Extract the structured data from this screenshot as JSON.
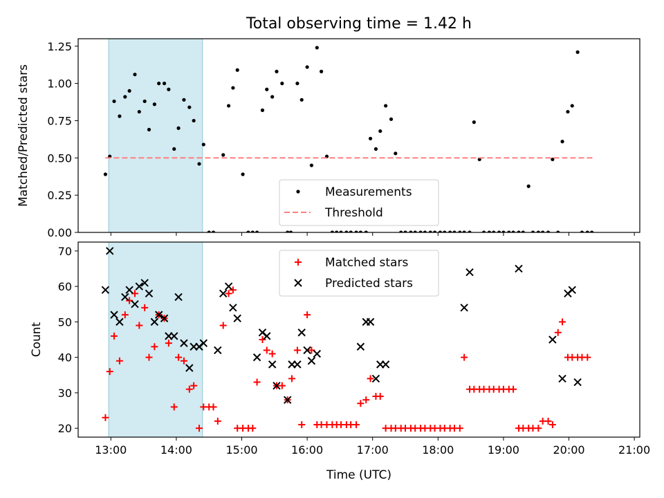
{
  "title": "Total observing time = 1.42 h",
  "chart_data": [
    {
      "type": "scatter",
      "ylabel": "Matched/Predicted stars",
      "ylim": [
        0,
        1.3
      ],
      "yticks": [
        "0.00",
        "0.25",
        "0.50",
        "0.75",
        "1.00",
        "1.25"
      ],
      "ytick_values": [
        0,
        0.25,
        0.5,
        0.75,
        1.0,
        1.25
      ],
      "xlim": [
        "12:30",
        "21:05"
      ],
      "shaded_span": [
        "12:58",
        "14:24"
      ],
      "shade_color": "#add8e6",
      "legend": {
        "position": "lower-center",
        "entries": [
          "Measurements",
          "Threshold"
        ]
      },
      "series": [
        {
          "name": "Measurements",
          "color": "#000000",
          "marker": "dot",
          "points": [
            [
              "12:55",
              0.39
            ],
            [
              "12:59",
              0.51
            ],
            [
              "13:03",
              0.88
            ],
            [
              "13:08",
              0.78
            ],
            [
              "13:13",
              0.91
            ],
            [
              "13:17",
              0.95
            ],
            [
              "13:22",
              1.06
            ],
            [
              "13:26",
              0.81
            ],
            [
              "13:31",
              0.88
            ],
            [
              "13:35",
              0.69
            ],
            [
              "13:40",
              0.86
            ],
            [
              "13:44",
              1.0
            ],
            [
              "13:49",
              1.0
            ],
            [
              "13:53",
              0.96
            ],
            [
              "13:58",
              0.56
            ],
            [
              "14:02",
              0.7
            ],
            [
              "14:07",
              0.89
            ],
            [
              "14:12",
              0.84
            ],
            [
              "14:16",
              0.75
            ],
            [
              "14:21",
              0.46
            ],
            [
              "14:25",
              0.59
            ],
            [
              "14:30",
              0.0
            ],
            [
              "14:34",
              0.0
            ],
            [
              "14:43",
              0.52
            ],
            [
              "14:48",
              0.85
            ],
            [
              "14:52",
              0.97
            ],
            [
              "14:56",
              1.09
            ],
            [
              "15:01",
              0.39
            ],
            [
              "15:06",
              0.0
            ],
            [
              "15:10",
              0.0
            ],
            [
              "15:14",
              0.0
            ],
            [
              "15:19",
              0.82
            ],
            [
              "15:23",
              0.96
            ],
            [
              "15:28",
              0.91
            ],
            [
              "15:32",
              1.08
            ],
            [
              "15:37",
              1.0
            ],
            [
              "15:42",
              0.0
            ],
            [
              "15:45",
              0.0
            ],
            [
              "15:51",
              1.0
            ],
            [
              "15:55",
              0.89
            ],
            [
              "16:00",
              1.11
            ],
            [
              "16:04",
              0.45
            ],
            [
              "16:09",
              1.24
            ],
            [
              "16:13",
              1.08
            ],
            [
              "16:18",
              0.51
            ],
            [
              "16:23",
              0.0
            ],
            [
              "16:27",
              0.0
            ],
            [
              "16:31",
              0.0
            ],
            [
              "16:36",
              0.0
            ],
            [
              "16:40",
              0.0
            ],
            [
              "16:45",
              0.0
            ],
            [
              "16:49",
              0.0
            ],
            [
              "16:54",
              0.0
            ],
            [
              "16:58",
              0.63
            ],
            [
              "17:03",
              0.56
            ],
            [
              "17:07",
              0.68
            ],
            [
              "17:12",
              0.85
            ],
            [
              "17:17",
              0.76
            ],
            [
              "17:21",
              0.53
            ],
            [
              "17:26",
              0.0
            ],
            [
              "17:30",
              0.0
            ],
            [
              "17:35",
              0.0
            ],
            [
              "17:39",
              0.0
            ],
            [
              "17:44",
              0.0
            ],
            [
              "17:48",
              0.0
            ],
            [
              "17:53",
              0.0
            ],
            [
              "17:57",
              0.0
            ],
            [
              "18:02",
              0.0
            ],
            [
              "18:06",
              0.0
            ],
            [
              "18:11",
              0.0
            ],
            [
              "18:15",
              0.0
            ],
            [
              "18:20",
              0.0
            ],
            [
              "18:24",
              0.0
            ],
            [
              "18:29",
              0.0
            ],
            [
              "18:33",
              0.74
            ],
            [
              "18:38",
              0.49
            ],
            [
              "18:42",
              0.0
            ],
            [
              "18:47",
              0.0
            ],
            [
              "18:51",
              0.0
            ],
            [
              "18:56",
              0.0
            ],
            [
              "19:00",
              0.0
            ],
            [
              "19:05",
              0.0
            ],
            [
              "19:09",
              0.0
            ],
            [
              "19:14",
              0.0
            ],
            [
              "19:18",
              0.0
            ],
            [
              "19:23",
              0.31
            ],
            [
              "19:27",
              0.0
            ],
            [
              "19:32",
              0.0
            ],
            [
              "19:36",
              0.0
            ],
            [
              "19:41",
              0.0
            ],
            [
              "19:45",
              0.49
            ],
            [
              "19:50",
              0.0
            ],
            [
              "19:54",
              0.61
            ],
            [
              "19:59",
              0.81
            ],
            [
              "20:03",
              0.85
            ],
            [
              "20:08",
              1.21
            ],
            [
              "20:12",
              0.0
            ],
            [
              "20:17",
              0.0
            ],
            [
              "20:21",
              0.0
            ]
          ]
        },
        {
          "name": "Threshold",
          "color": "#ff7f7f",
          "style": "dashed",
          "points": [
            [
              "12:55",
              0.5
            ],
            [
              "20:23",
              0.5
            ]
          ]
        }
      ]
    },
    {
      "type": "scatter",
      "xlabel": "Time (UTC)",
      "ylabel": "Count",
      "ylim": [
        17.5,
        72.5
      ],
      "yticks": [
        "20",
        "30",
        "40",
        "50",
        "60",
        "70"
      ],
      "ytick_values": [
        20,
        30,
        40,
        50,
        60,
        70
      ],
      "xlim": [
        "12:30",
        "21:05"
      ],
      "xticks": [
        "13:00",
        "14:00",
        "15:00",
        "16:00",
        "17:00",
        "18:00",
        "19:00",
        "20:00",
        "21:00"
      ],
      "shaded_span": [
        "12:58",
        "14:24"
      ],
      "shade_color": "#add8e6",
      "legend": {
        "position": "upper-center",
        "entries": [
          "Matched stars",
          "Predicted stars"
        ]
      },
      "series": [
        {
          "name": "Matched stars",
          "color": "#ff0000",
          "marker": "plus",
          "points": [
            [
              "12:55",
              23
            ],
            [
              "12:59",
              36
            ],
            [
              "13:03",
              46
            ],
            [
              "13:08",
              39
            ],
            [
              "13:13",
              52
            ],
            [
              "13:17",
              56
            ],
            [
              "13:22",
              58
            ],
            [
              "13:26",
              49
            ],
            [
              "13:31",
              54
            ],
            [
              "13:35",
              40
            ],
            [
              "13:40",
              43
            ],
            [
              "13:44",
              52
            ],
            [
              "13:49",
              51
            ],
            [
              "13:53",
              44
            ],
            [
              "13:58",
              26
            ],
            [
              "14:02",
              40
            ],
            [
              "14:07",
              39
            ],
            [
              "14:12",
              31
            ],
            [
              "14:16",
              32
            ],
            [
              "14:21",
              20
            ],
            [
              "14:25",
              26
            ],
            [
              "14:30",
              26
            ],
            [
              "14:34",
              26
            ],
            [
              "14:38",
              22
            ],
            [
              "14:43",
              49
            ],
            [
              "14:48",
              58
            ],
            [
              "14:52",
              59
            ],
            [
              "14:56",
              20
            ],
            [
              "15:01",
              20
            ],
            [
              "15:06",
              20
            ],
            [
              "15:10",
              20
            ],
            [
              "15:14",
              33
            ],
            [
              "15:19",
              45
            ],
            [
              "15:23",
              42
            ],
            [
              "15:28",
              41
            ],
            [
              "15:32",
              32
            ],
            [
              "15:37",
              32
            ],
            [
              "15:42",
              28
            ],
            [
              "15:46",
              34
            ],
            [
              "15:51",
              42
            ],
            [
              "15:55",
              21
            ],
            [
              "16:00",
              52
            ],
            [
              "16:04",
              42
            ],
            [
              "16:09",
              21
            ],
            [
              "16:13",
              21
            ],
            [
              "16:18",
              21
            ],
            [
              "16:23",
              21
            ],
            [
              "16:27",
              21
            ],
            [
              "16:31",
              21
            ],
            [
              "16:36",
              21
            ],
            [
              "16:40",
              21
            ],
            [
              "16:45",
              21
            ],
            [
              "16:49",
              27
            ],
            [
              "16:54",
              28
            ],
            [
              "16:58",
              34
            ],
            [
              "17:03",
              29
            ],
            [
              "17:07",
              29
            ],
            [
              "17:12",
              20
            ],
            [
              "17:17",
              20
            ],
            [
              "17:21",
              20
            ],
            [
              "17:26",
              20
            ],
            [
              "17:30",
              20
            ],
            [
              "17:35",
              20
            ],
            [
              "17:39",
              20
            ],
            [
              "17:44",
              20
            ],
            [
              "17:48",
              20
            ],
            [
              "17:53",
              20
            ],
            [
              "17:57",
              20
            ],
            [
              "18:02",
              20
            ],
            [
              "18:06",
              20
            ],
            [
              "18:11",
              20
            ],
            [
              "18:15",
              20
            ],
            [
              "18:20",
              20
            ],
            [
              "18:24",
              40
            ],
            [
              "18:29",
              31
            ],
            [
              "18:33",
              31
            ],
            [
              "18:38",
              31
            ],
            [
              "18:42",
              31
            ],
            [
              "18:47",
              31
            ],
            [
              "18:51",
              31
            ],
            [
              "18:56",
              31
            ],
            [
              "19:00",
              31
            ],
            [
              "19:05",
              31
            ],
            [
              "19:09",
              31
            ],
            [
              "19:14",
              20
            ],
            [
              "19:18",
              20
            ],
            [
              "19:23",
              20
            ],
            [
              "19:27",
              20
            ],
            [
              "19:32",
              20
            ],
            [
              "19:36",
              22
            ],
            [
              "19:41",
              22
            ],
            [
              "19:45",
              21
            ],
            [
              "19:50",
              47
            ],
            [
              "19:54",
              50
            ],
            [
              "19:59",
              40
            ],
            [
              "20:03",
              40
            ],
            [
              "20:08",
              40
            ],
            [
              "20:12",
              40
            ],
            [
              "20:17",
              40
            ]
          ]
        },
        {
          "name": "Predicted stars",
          "color": "#000000",
          "marker": "x",
          "points": [
            [
              "12:55",
              59
            ],
            [
              "12:59",
              70
            ],
            [
              "13:03",
              52
            ],
            [
              "13:08",
              50
            ],
            [
              "13:13",
              57
            ],
            [
              "13:17",
              59
            ],
            [
              "13:22",
              55
            ],
            [
              "13:26",
              60
            ],
            [
              "13:31",
              61
            ],
            [
              "13:35",
              58
            ],
            [
              "13:40",
              50
            ],
            [
              "13:44",
              52
            ],
            [
              "13:49",
              51
            ],
            [
              "13:53",
              46
            ],
            [
              "13:58",
              46
            ],
            [
              "14:02",
              57
            ],
            [
              "14:07",
              44
            ],
            [
              "14:12",
              37
            ],
            [
              "14:16",
              43
            ],
            [
              "14:21",
              43
            ],
            [
              "14:25",
              44
            ],
            [
              "14:38",
              42
            ],
            [
              "14:43",
              58
            ],
            [
              "14:48",
              60
            ],
            [
              "14:52",
              54
            ],
            [
              "14:56",
              51
            ],
            [
              "15:14",
              40
            ],
            [
              "15:19",
              47
            ],
            [
              "15:23",
              46
            ],
            [
              "15:28",
              38
            ],
            [
              "15:32",
              32
            ],
            [
              "15:42",
              28
            ],
            [
              "15:46",
              38
            ],
            [
              "15:51",
              38
            ],
            [
              "15:55",
              47
            ],
            [
              "16:00",
              42
            ],
            [
              "16:04",
              39
            ],
            [
              "16:09",
              41
            ],
            [
              "16:49",
              43
            ],
            [
              "16:54",
              50
            ],
            [
              "16:58",
              50
            ],
            [
              "17:03",
              34
            ],
            [
              "17:07",
              38
            ],
            [
              "17:12",
              38
            ],
            [
              "18:24",
              54
            ],
            [
              "18:29",
              64
            ],
            [
              "19:14",
              65
            ],
            [
              "19:45",
              45
            ],
            [
              "19:54",
              34
            ],
            [
              "19:59",
              58
            ],
            [
              "20:03",
              59
            ],
            [
              "20:08",
              33
            ]
          ]
        }
      ]
    }
  ]
}
